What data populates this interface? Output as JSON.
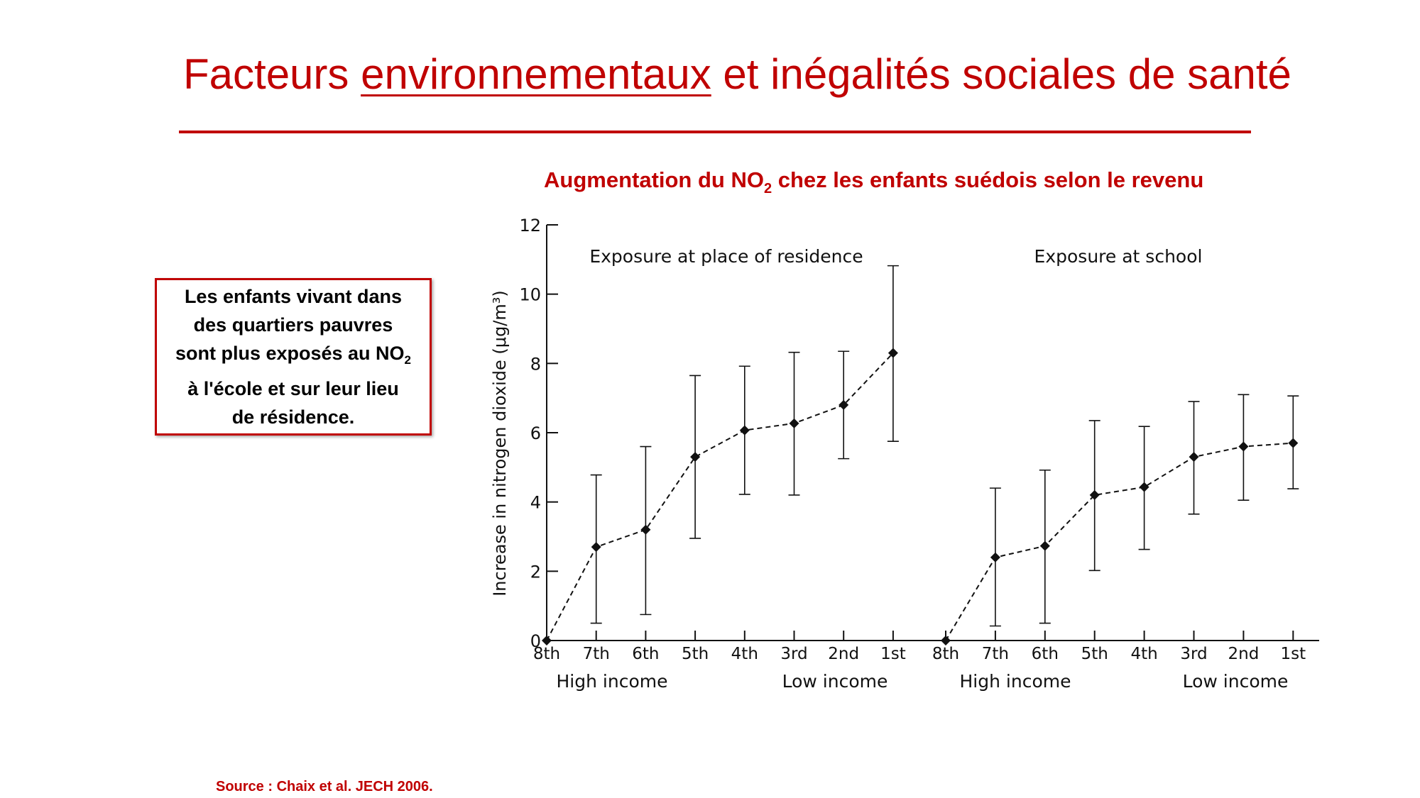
{
  "slide": {
    "title_part1": "Facteurs ",
    "title_underlined": "environnementaux",
    "title_part2": " et inégalités sociales de santé",
    "chart_title_part1": "Augmentation du NO",
    "chart_title_sub": "2",
    "chart_title_part2": " chez les enfants suédois selon le revenu",
    "callout_line1": "Les enfants vivant dans",
    "callout_line2": "des quartiers pauvres",
    "callout_line3_part1": "sont plus exposés au NO",
    "callout_line3_sub": "2",
    "callout_line4": "à l'école et sur leur lieu",
    "callout_line5": "de résidence.",
    "source": "Source : Chaix et al. JECH 2006.",
    "colors": {
      "accent": "#c00000",
      "ink": "#111111"
    }
  },
  "chart_data": {
    "type": "line",
    "ylabel": "Increase in nitrogen dioxide (μg/m³)",
    "ylim": [
      0,
      12
    ],
    "yticks": [
      "0",
      "2",
      "4",
      "6",
      "8",
      "10",
      "12"
    ],
    "categories": [
      "8th",
      "7th",
      "6th",
      "5th",
      "4th",
      "3rd",
      "2nd",
      "1st"
    ],
    "income_labels": {
      "high": "High income",
      "low": "Low income"
    },
    "error_bars": true,
    "line_style": "dashed",
    "marker": "diamond",
    "panels": [
      {
        "title": "Exposure at place of residence",
        "values": [
          0,
          2.7,
          3.2,
          5.3,
          6.07,
          6.27,
          6.8,
          8.3
        ],
        "lower": [
          0,
          0.5,
          0.75,
          2.95,
          4.22,
          4.2,
          5.25,
          5.75
        ],
        "upper": [
          0,
          4.78,
          5.6,
          7.65,
          7.92,
          8.32,
          8.35,
          10.82
        ]
      },
      {
        "title": "Exposure at school",
        "values": [
          0,
          2.4,
          2.73,
          4.2,
          4.43,
          5.3,
          5.6,
          5.7
        ],
        "lower": [
          0,
          0.42,
          0.5,
          2.02,
          2.63,
          3.65,
          4.05,
          4.38
        ],
        "upper": [
          0,
          4.4,
          4.92,
          6.35,
          6.18,
          6.9,
          7.1,
          7.06
        ]
      }
    ]
  }
}
